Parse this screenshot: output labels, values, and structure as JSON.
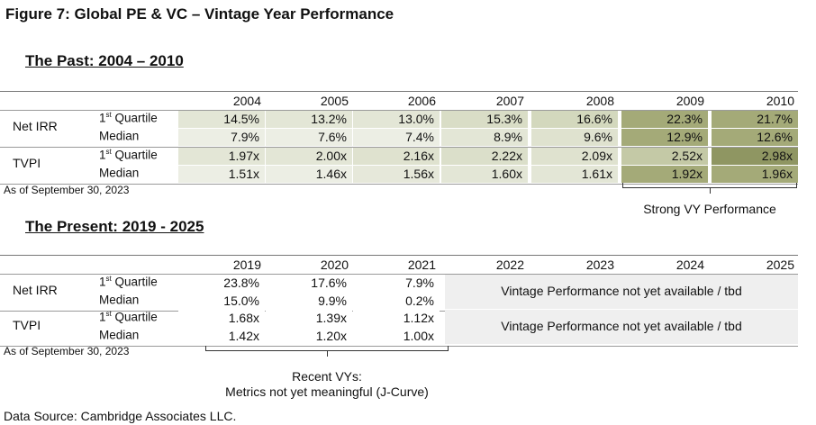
{
  "figure_title": "Figure 7: Global PE & VC – Vintage Year Performance",
  "past": {
    "title": "The Past: 2004 – 2010",
    "years": [
      "2004",
      "2005",
      "2006",
      "2007",
      "2008",
      "2009",
      "2010"
    ],
    "groups": [
      {
        "label": "Net IRR",
        "rows": [
          {
            "label_main": "1",
            "label_sup": "st",
            "label_rest": " Quartile",
            "values": [
              "14.5%",
              "13.2%",
              "13.0%",
              "15.3%",
              "16.6%",
              "22.3%",
              "21.7%"
            ]
          },
          {
            "label_main": "Median",
            "label_sup": "",
            "label_rest": "",
            "values": [
              "7.9%",
              "7.6%",
              "7.4%",
              "8.9%",
              "9.6%",
              "12.9%",
              "12.6%"
            ]
          }
        ]
      },
      {
        "label": "TVPI",
        "rows": [
          {
            "label_main": "1",
            "label_sup": "st",
            "label_rest": " Quartile",
            "values": [
              "1.97x",
              "2.00x",
              "2.16x",
              "2.22x",
              "2.09x",
              "2.52x",
              "2.98x"
            ]
          },
          {
            "label_main": "Median",
            "label_sup": "",
            "label_rest": "",
            "values": [
              "1.51x",
              "1.46x",
              "1.56x",
              "1.60x",
              "1.61x",
              "1.92x",
              "1.96x"
            ]
          }
        ]
      }
    ],
    "cell_colors": [
      [
        "#e3e6d6",
        "#e3e6d6",
        "#e3e6d6",
        "#d9ddc6",
        "#d3d8bd",
        "#a4aa78",
        "#a4aa78"
      ],
      [
        "#eceee4",
        "#eceee4",
        "#eceee4",
        "#e3e6d6",
        "#dfe2cf",
        "#a4aa78",
        "#a4aa78"
      ],
      [
        "#e3e6d6",
        "#e3e6d6",
        "#dfe2cf",
        "#dbdfca",
        "#dfe2cf",
        "#c4c9a6",
        "#8f9662"
      ],
      [
        "#eceee4",
        "#eceee4",
        "#e6e8da",
        "#e3e6d6",
        "#e3e6d6",
        "#a4aa78",
        "#a4aa78"
      ]
    ],
    "as_of": "As of September 30, 2023",
    "callout": "Strong VY Performance"
  },
  "present": {
    "title": "The Present: 2019 - 2025",
    "years": [
      "2019",
      "2020",
      "2021",
      "2022",
      "2023",
      "2024",
      "2025"
    ],
    "groups": [
      {
        "label": "Net IRR",
        "rows": [
          {
            "label_main": "1",
            "label_sup": "st",
            "label_rest": " Quartile",
            "values": [
              "23.8%",
              "17.6%",
              "7.9%"
            ]
          },
          {
            "label_main": "Median",
            "label_sup": "",
            "label_rest": "",
            "values": [
              "15.0%",
              "9.9%",
              "0.2%"
            ]
          }
        ]
      },
      {
        "label": "TVPI",
        "rows": [
          {
            "label_main": "1",
            "label_sup": "st",
            "label_rest": " Quartile",
            "values": [
              "1.68x",
              "1.39x",
              "1.12x"
            ]
          },
          {
            "label_main": "Median",
            "label_sup": "",
            "label_rest": "",
            "values": [
              "1.42x",
              "1.20x",
              "1.00x"
            ]
          }
        ]
      }
    ],
    "na_text": "Vintage Performance not yet available / tbd",
    "as_of": "As of September 30, 2023",
    "callout_line1": "Recent VYs:",
    "callout_line2": "Metrics not yet meaningful (J-Curve)"
  },
  "source": "Data Source: Cambridge Associates LLC."
}
